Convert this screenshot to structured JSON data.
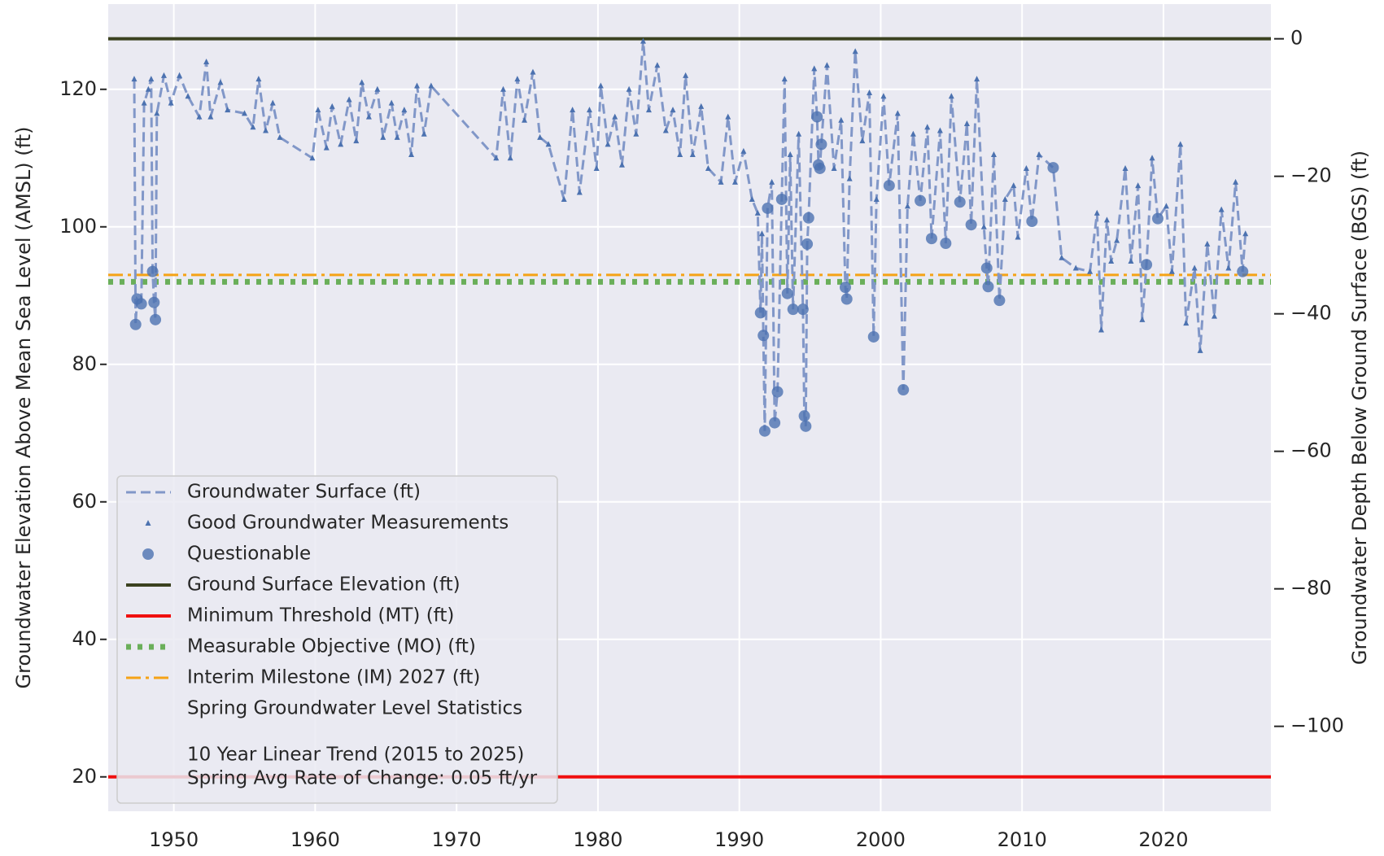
{
  "chart_data": {
    "type": "line",
    "ylabel": "Groundwater Elevation Above Mean Sea Level (AMSL) (ft)",
    "y2label": "Groundwater Depth Below Ground Surface (BGS) (ft)",
    "xlim": [
      1945.36,
      2027.6
    ],
    "xticks": [
      1950,
      1960,
      1970,
      1980,
      1990,
      2000,
      2010,
      2020
    ],
    "ylim": [
      15,
      132.4
    ],
    "yticks": [
      20,
      40,
      60,
      80,
      100,
      120
    ],
    "y2lim": [
      -112.35,
      5.05
    ],
    "y2ticks": [
      0,
      {
        "value": -20,
        "label": "−20"
      },
      {
        "value": -40,
        "label": "−40"
      },
      {
        "value": -60,
        "label": "−60"
      },
      {
        "value": -80,
        "label": "−80"
      },
      {
        "value": -100,
        "label": "−100"
      }
    ],
    "grid": true,
    "legend": "lower left",
    "series": [
      {
        "name": "Groundwater Surface (ft)",
        "color": "#8197c8",
        "style": "dashed",
        "x": [
          1947.2,
          1947.3,
          1947.4,
          1947.7,
          1947.9,
          1948.2,
          1948.4,
          1948.5,
          1948.6,
          1948.7,
          1948.8,
          1949.3,
          1949.8,
          1950.4,
          1951.0,
          1951.8,
          1952.3,
          1952.6,
          1953.3,
          1953.8,
          1955.0,
          1955.6,
          1956.0,
          1956.5,
          1957.0,
          1957.5,
          1959.8,
          1960.2,
          1960.8,
          1961.2,
          1961.8,
          1962.4,
          1962.9,
          1963.3,
          1963.8,
          1964.4,
          1964.8,
          1965.4,
          1965.8,
          1966.3,
          1966.8,
          1967.2,
          1967.7,
          1968.2,
          1972.8,
          1973.3,
          1973.8,
          1974.3,
          1974.8,
          1975.4,
          1975.9,
          1976.5,
          1977.6,
          1978.2,
          1978.7,
          1979.4,
          1979.9,
          1980.2,
          1980.7,
          1981.2,
          1981.7,
          1982.2,
          1982.7,
          1983.2,
          1983.6,
          1984.2,
          1984.8,
          1985.3,
          1985.8,
          1986.2,
          1986.7,
          1987.3,
          1987.8,
          1988.7,
          1989.2,
          1989.7,
          1990.3,
          1990.9,
          1991.3,
          1991.5,
          1991.6,
          1991.7,
          1991.8,
          1992.0,
          1992.3,
          1992.5,
          1992.7,
          1993.0,
          1993.2,
          1993.4,
          1993.6,
          1993.8,
          1994.2,
          1994.5,
          1994.6,
          1994.7,
          1994.8,
          1994.9,
          1995.3,
          1995.5,
          1995.6,
          1995.7,
          1995.8,
          1996.2,
          1996.7,
          1997.2,
          1997.5,
          1997.6,
          1997.8,
          1998.2,
          1998.7,
          1999.2,
          1999.5,
          1999.7,
          2000.2,
          2000.6,
          2001.2,
          2001.6,
          2001.9,
          2002.3,
          2002.8,
          2003.3,
          2003.6,
          2004.2,
          2004.6,
          2005.0,
          2005.6,
          2006.1,
          2006.4,
          2006.8,
          2007.3,
          2007.5,
          2007.6,
          2008.0,
          2008.4,
          2008.8,
          2009.4,
          2009.7,
          2010.3,
          2010.7,
          2011.2,
          2012.2,
          2012.8,
          2013.8,
          2014.8,
          2015.3,
          2015.6,
          2016.0,
          2016.3,
          2016.7,
          2017.3,
          2017.7,
          2018.2,
          2018.5,
          2018.8,
          2019.2,
          2019.6,
          2020.2,
          2020.6,
          2021.2,
          2021.6,
          2022.2,
          2022.6,
          2023.1,
          2023.6,
          2024.1,
          2024.6,
          2025.1,
          2025.6,
          2025.8
        ],
        "values": [
          121.5,
          85.8,
          89.5,
          88.8,
          118,
          120,
          121.5,
          93.5,
          89,
          86.5,
          116.5,
          122,
          118,
          122,
          119,
          116,
          124,
          116,
          121,
          117,
          116.5,
          114.5,
          121.5,
          114,
          118,
          113,
          110,
          117,
          111.5,
          117.5,
          112,
          118.5,
          112.5,
          121,
          116,
          120,
          113,
          118,
          113,
          117,
          110.5,
          120.5,
          113.5,
          120.5,
          110,
          120,
          110,
          121.5,
          115.5,
          122.5,
          113,
          112,
          104,
          117,
          105,
          117,
          108.5,
          120.5,
          112,
          116,
          109,
          120,
          113.5,
          127,
          117,
          123.5,
          114,
          117,
          110.5,
          122,
          110.5,
          117.5,
          108.5,
          106.5,
          116,
          106.5,
          111,
          104,
          102,
          87.5,
          99,
          84.2,
          70.3,
          102.7,
          106.5,
          71.5,
          76,
          104,
          121.5,
          90.3,
          110.5,
          88,
          113.5,
          88,
          72.5,
          71,
          97.5,
          101.3,
          123,
          116,
          109,
          108.5,
          112,
          123.5,
          108.5,
          115.5,
          91.2,
          89.5,
          107,
          125.5,
          112.5,
          119.5,
          84,
          104,
          119,
          106,
          116.5,
          76.3,
          103,
          113.5,
          103.8,
          114.5,
          98.3,
          114,
          97.6,
          119,
          103.6,
          115,
          100.3,
          121.5,
          100,
          94,
          91.3,
          110.5,
          89.3,
          104,
          106,
          98.5,
          108.5,
          100.8,
          110.5,
          108.6,
          95.5,
          94,
          93.5,
          102,
          85,
          101,
          95,
          98,
          108.5,
          95,
          106,
          86.5,
          94.5,
          110,
          101.2,
          103,
          93.5,
          112,
          86,
          94,
          82,
          97.5,
          87,
          102.5,
          94,
          106.5,
          93.5,
          99
        ]
      },
      {
        "name": "Good Groundwater Measurements",
        "color": "#4c72b0",
        "style": "triangle",
        "x": [
          1947.2,
          1947.9,
          1948.2,
          1948.4,
          1948.8,
          1949.3,
          1949.8,
          1950.4,
          1951.0,
          1951.8,
          1952.3,
          1952.6,
          1953.3,
          1953.8,
          1955.0,
          1955.6,
          1956.0,
          1956.5,
          1957.0,
          1957.5,
          1959.8,
          1960.2,
          1960.8,
          1961.2,
          1961.8,
          1962.4,
          1962.9,
          1963.3,
          1963.8,
          1964.4,
          1964.8,
          1965.4,
          1965.8,
          1966.3,
          1966.8,
          1967.2,
          1967.7,
          1968.2,
          1972.8,
          1973.3,
          1973.8,
          1974.3,
          1974.8,
          1975.4,
          1975.9,
          1976.5,
          1977.6,
          1978.2,
          1978.7,
          1979.4,
          1979.9,
          1980.2,
          1980.7,
          1981.2,
          1981.7,
          1982.2,
          1982.7,
          1983.2,
          1983.6,
          1984.2,
          1984.8,
          1985.3,
          1985.8,
          1986.2,
          1986.7,
          1987.3,
          1987.8,
          1988.7,
          1989.2,
          1989.7,
          1990.3,
          1990.9,
          1991.3,
          1991.6,
          1992.3,
          1993.2,
          1993.6,
          1994.2,
          1995.3,
          1996.2,
          1996.7,
          1997.2,
          1997.8,
          1998.2,
          1998.7,
          1999.2,
          1999.7,
          2000.2,
          2001.2,
          2001.9,
          2002.3,
          2003.3,
          2004.2,
          2005.0,
          2006.1,
          2006.8,
          2007.3,
          2008.0,
          2008.8,
          2009.4,
          2009.7,
          2010.3,
          2011.2,
          2012.8,
          2013.8,
          2014.8,
          2015.3,
          2015.6,
          2016.0,
          2016.3,
          2016.7,
          2017.3,
          2017.7,
          2018.2,
          2018.5,
          2019.2,
          2020.2,
          2020.6,
          2021.2,
          2021.6,
          2022.2,
          2022.6,
          2023.1,
          2023.6,
          2024.1,
          2024.6,
          2025.1,
          2025.8
        ],
        "values": [
          121.5,
          118,
          120,
          121.5,
          116.5,
          122,
          118,
          122,
          119,
          116,
          124,
          116,
          121,
          117,
          116.5,
          114.5,
          121.5,
          114,
          118,
          113,
          110,
          117,
          111.5,
          117.5,
          112,
          118.5,
          112.5,
          121,
          116,
          120,
          113,
          118,
          113,
          117,
          110.5,
          120.5,
          113.5,
          120.5,
          110,
          120,
          110,
          121.5,
          115.5,
          122.5,
          113,
          112,
          104,
          117,
          105,
          117,
          108.5,
          120.5,
          112,
          116,
          109,
          120,
          113.5,
          127,
          117,
          123.5,
          114,
          117,
          110.5,
          122,
          110.5,
          117.5,
          108.5,
          106.5,
          116,
          106.5,
          111,
          104,
          102,
          99,
          106.5,
          121.5,
          110.5,
          113.5,
          123,
          123.5,
          108.5,
          115.5,
          107,
          125.5,
          112.5,
          119.5,
          104,
          119,
          116.5,
          103,
          113.5,
          114.5,
          114,
          119,
          115,
          121.5,
          100,
          110.5,
          104,
          106,
          98.5,
          108.5,
          110.5,
          95.5,
          94,
          93.5,
          102,
          85,
          101,
          95,
          98,
          108.5,
          95,
          106,
          86.5,
          110,
          103,
          93.5,
          112,
          86,
          94,
          82,
          97.5,
          87,
          102.5,
          94,
          106.5,
          99
        ]
      },
      {
        "name": "Questionable",
        "color": "#4c72b0",
        "style": "circle",
        "x": [
          1947.3,
          1947.4,
          1947.7,
          1948.5,
          1948.6,
          1948.7,
          1991.5,
          1991.7,
          1991.8,
          1992.0,
          1992.5,
          1992.7,
          1993.0,
          1993.4,
          1993.8,
          1994.5,
          1994.6,
          1994.7,
          1994.8,
          1994.9,
          1995.5,
          1995.6,
          1995.7,
          1995.8,
          1997.5,
          1997.6,
          1999.5,
          2000.6,
          2001.6,
          2002.8,
          2003.6,
          2004.6,
          2005.6,
          2006.4,
          2007.5,
          2007.6,
          2008.4,
          2010.7,
          2012.2,
          2018.8,
          2019.6,
          2025.6
        ],
        "values": [
          85.8,
          89.5,
          88.8,
          93.5,
          89,
          86.5,
          87.5,
          84.2,
          70.3,
          102.7,
          71.5,
          76,
          104,
          90.3,
          88,
          88,
          72.5,
          71,
          97.5,
          101.3,
          116,
          109,
          108.5,
          112,
          91.2,
          89.5,
          84,
          106,
          76.3,
          103.8,
          98.3,
          97.6,
          103.6,
          100.3,
          94,
          91.3,
          89.3,
          100.8,
          108.6,
          94.5,
          101.2,
          93.5
        ]
      }
    ],
    "reference_lines": [
      {
        "name": "Ground Surface Elevation (ft)",
        "value": 127.35,
        "color": "#3b4220",
        "style": "solid"
      },
      {
        "name": "Minimum Threshold (MT) (ft)",
        "value": 20,
        "color": "#f01010",
        "style": "solid"
      },
      {
        "name": "Measurable Objective (MO) (ft)",
        "value": 92,
        "color": "#6aaf5a",
        "style": "dotted"
      },
      {
        "name": "Interim Milestone (IM) 2027 (ft)",
        "value": 93,
        "color": "#f5a316",
        "style": "dashdot"
      }
    ],
    "legend_notes": [
      "Spring Groundwater Level Statistics",
      "10 Year Linear Trend (2015 to 2025)",
      "Spring Avg Rate of Change: 0.05 ft/yr"
    ]
  }
}
